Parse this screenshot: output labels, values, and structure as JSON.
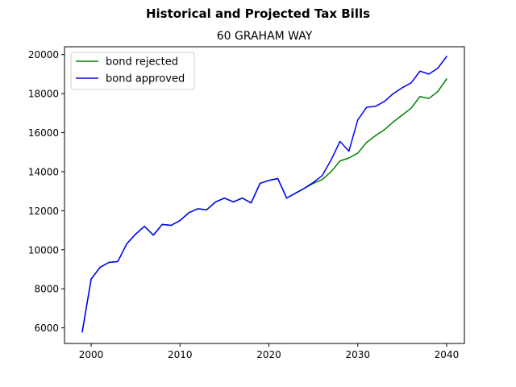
{
  "figure": {
    "suptitle": "Historical and Projected Tax Bills"
  },
  "chart_data": {
    "type": "line",
    "title": "60 GRAHAM WAY",
    "xlabel": "",
    "ylabel": "",
    "xlim": [
      1997,
      2042
    ],
    "ylim": [
      5200,
      20400
    ],
    "xticks": [
      2000,
      2010,
      2020,
      2030,
      2040
    ],
    "yticks": [
      6000,
      8000,
      10000,
      12000,
      14000,
      16000,
      18000,
      20000
    ],
    "grid": false,
    "legend_position": "upper left",
    "x": [
      1999,
      2000,
      2001,
      2002,
      2003,
      2004,
      2005,
      2006,
      2007,
      2008,
      2009,
      2010,
      2011,
      2012,
      2013,
      2014,
      2015,
      2016,
      2017,
      2018,
      2019,
      2020,
      2021,
      2022,
      2023,
      2024,
      2025,
      2026,
      2027,
      2028,
      2029,
      2030,
      2031,
      2032,
      2033,
      2034,
      2035,
      2036,
      2037,
      2038,
      2039,
      2040
    ],
    "series": [
      {
        "name": "bond rejected",
        "color": "#008000",
        "values": [
          5800,
          8500,
          9100,
          9350,
          9400,
          10300,
          10800,
          11200,
          10750,
          11300,
          11250,
          11500,
          11900,
          12100,
          12050,
          12450,
          12650,
          12450,
          12650,
          12400,
          13400,
          13550,
          13650,
          12650,
          12900,
          13150,
          13400,
          13600,
          14000,
          14550,
          14700,
          14950,
          15500,
          15850,
          16150,
          16550,
          16900,
          17250,
          17850,
          17750,
          18100,
          18750
        ]
      },
      {
        "name": "bond approved",
        "color": "#0000ff",
        "values": [
          5800,
          8500,
          9100,
          9350,
          9400,
          10300,
          10800,
          11200,
          10750,
          11300,
          11250,
          11500,
          11900,
          12100,
          12050,
          12450,
          12650,
          12450,
          12650,
          12400,
          13400,
          13550,
          13650,
          12650,
          12900,
          13150,
          13450,
          13800,
          14600,
          15550,
          15050,
          16650,
          17300,
          17350,
          17600,
          18000,
          18300,
          18550,
          19150,
          19000,
          19300,
          19900
        ]
      }
    ]
  }
}
